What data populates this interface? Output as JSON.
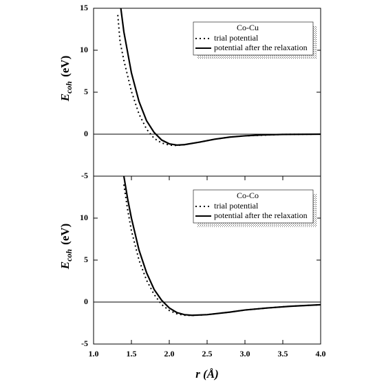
{
  "chart_data": [
    {
      "type": "line",
      "legend_title": "Co-Cu",
      "y_label": "E",
      "y_label_sub": "coh",
      "y_label_unit": "(eV)",
      "xlim": [
        1.0,
        4.0
      ],
      "ylim": [
        -5,
        15
      ],
      "yticks": [
        -5,
        0,
        5,
        10,
        15
      ],
      "series": [
        {
          "name": "trial potential",
          "color": "#000000",
          "line_style": "dotted",
          "x": [
            1.32,
            1.35,
            1.4,
            1.5,
            1.6,
            1.7,
            1.8,
            1.9,
            2.0,
            2.1,
            2.2,
            2.4,
            2.6,
            2.8,
            3.0,
            3.5,
            4.0
          ],
          "values": [
            14.2,
            11,
            8.8,
            5.1,
            2.4,
            0.6,
            -0.5,
            -1.05,
            -1.3,
            -1.35,
            -1.25,
            -0.95,
            -0.6,
            -0.35,
            -0.2,
            -0.03,
            0
          ]
        },
        {
          "name": "potential after the relaxation",
          "color": "#000000",
          "line_style": "solid",
          "x": [
            1.36,
            1.4,
            1.5,
            1.6,
            1.7,
            1.8,
            1.9,
            2.0,
            2.1,
            2.2,
            2.4,
            2.6,
            2.8,
            3.0,
            3.2,
            3.5,
            4.0
          ],
          "values": [
            15,
            12.2,
            7.3,
            3.9,
            1.6,
            0.2,
            -0.7,
            -1.15,
            -1.3,
            -1.25,
            -0.95,
            -0.6,
            -0.35,
            -0.2,
            -0.1,
            -0.03,
            0
          ]
        }
      ]
    },
    {
      "type": "line",
      "legend_title": "Co-Co",
      "y_label": "E",
      "y_label_sub": "coh",
      "y_label_unit": "(eV)",
      "x_label": "r (Å)",
      "xlim": [
        1.0,
        4.0
      ],
      "xticks": [
        {
          "value": 1,
          "label": "1.0"
        },
        {
          "value": 1.5,
          "label": "1.5"
        },
        {
          "value": 2,
          "label": "2.0"
        },
        {
          "value": 2.5,
          "label": "2.5"
        },
        {
          "value": 3,
          "label": "3.0"
        },
        {
          "value": 3.5,
          "label": "3.5"
        },
        {
          "value": 4,
          "label": "4.0"
        }
      ],
      "ylim": [
        -5,
        15
      ],
      "yticks": [
        -5,
        0,
        5,
        10
      ],
      "series": [
        {
          "name": "trial potential",
          "color": "#000000",
          "line_style": "dotted",
          "x": [
            1.4,
            1.45,
            1.5,
            1.6,
            1.7,
            1.8,
            1.9,
            2.0,
            2.1,
            2.2,
            2.3,
            2.5,
            2.8,
            3.0,
            3.3,
            3.6,
            4.0
          ],
          "values": [
            14,
            11,
            8.5,
            5.0,
            2.6,
            0.9,
            -0.3,
            -1.0,
            -1.4,
            -1.57,
            -1.6,
            -1.5,
            -1.2,
            -0.95,
            -0.7,
            -0.5,
            -0.32
          ]
        },
        {
          "name": "potential after the relaxation",
          "color": "#000000",
          "line_style": "solid",
          "x": [
            1.4,
            1.45,
            1.5,
            1.6,
            1.7,
            1.8,
            1.9,
            2.0,
            2.1,
            2.2,
            2.3,
            2.5,
            2.8,
            3.0,
            3.3,
            3.6,
            4.0
          ],
          "values": [
            15,
            12.3,
            10,
            6.2,
            3.5,
            1.5,
            0.2,
            -0.7,
            -1.25,
            -1.5,
            -1.58,
            -1.5,
            -1.2,
            -0.95,
            -0.7,
            -0.5,
            -0.32
          ]
        }
      ]
    }
  ]
}
